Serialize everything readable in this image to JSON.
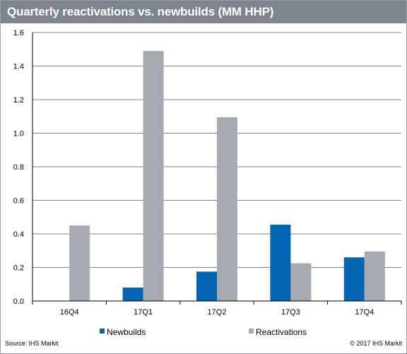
{
  "header": {
    "title": "Quarterly reactivations vs. newbuilds (MM HHP)"
  },
  "footer": {
    "source": "Source: IHS Markit",
    "copyright": "© 2017 IHS Markit"
  },
  "colors": {
    "title_bg": "#7f858c",
    "newbuilds": "#0563b3",
    "reactivations": "#a5abb1",
    "grid": "#808080"
  },
  "chart_data": {
    "type": "bar",
    "title": "Quarterly reactivations vs. newbuilds (MM HHP)",
    "xlabel": "",
    "ylabel": "",
    "categories": [
      "16Q4",
      "17Q1",
      "17Q2",
      "17Q3",
      "17Q4"
    ],
    "series": [
      {
        "name": "Newbuilds",
        "values": [
          0,
          0.08,
          0.175,
          0.455,
          0.26
        ]
      },
      {
        "name": "Reactivations",
        "values": [
          0.45,
          1.49,
          1.095,
          0.225,
          0.295
        ]
      }
    ],
    "ylim": [
      0,
      1.6
    ],
    "yticks": [
      "0.0",
      "0.2",
      "0.4",
      "0.6",
      "0.8",
      "1.0",
      "1.2",
      "1.4",
      "1.6"
    ],
    "grid": "horizontal",
    "legend": "bottom"
  }
}
